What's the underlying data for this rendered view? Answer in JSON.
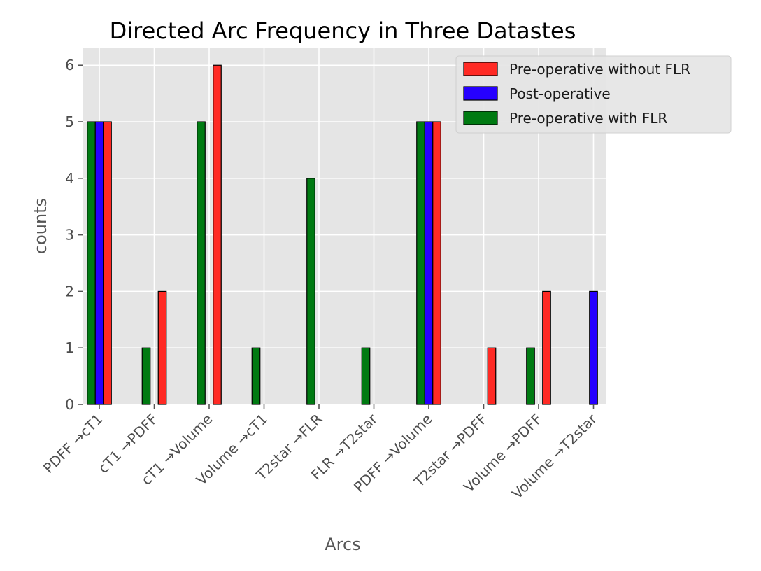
{
  "chart_data": {
    "type": "bar",
    "title": "Directed Arc Frequency in Three Datastes",
    "xlabel": "Arcs",
    "ylabel": "counts",
    "ylim": [
      0,
      6.3
    ],
    "yticks": [
      0,
      1,
      2,
      3,
      4,
      5,
      6
    ],
    "grid": true,
    "legend_position": "top-right",
    "categories": [
      "PDFF →cT1",
      "cT1 →PDFF",
      "cT1 →Volume",
      "Volume →cT1",
      "T2star →FLR",
      "FLR →T2star",
      "PDFF →Volume",
      "T2star →PDFF",
      "Volume →PDFF",
      "Volume →T2star"
    ],
    "series": [
      {
        "name": "Pre-operative with FLR",
        "color": "#007A12",
        "values": [
          5,
          1,
          5,
          1,
          4,
          1,
          5,
          0,
          1,
          0
        ]
      },
      {
        "name": "Post-operative",
        "color": "#2600FF",
        "values": [
          5,
          0,
          0,
          0,
          0,
          0,
          5,
          0,
          0,
          2
        ]
      },
      {
        "name": "Pre-operative without FLR",
        "color": "#FF2A24",
        "values": [
          5,
          2,
          6,
          0,
          0,
          0,
          5,
          1,
          2,
          0
        ]
      }
    ],
    "legend_order": [
      "Pre-operative without FLR",
      "Post-operative",
      "Pre-operative with FLR"
    ]
  }
}
